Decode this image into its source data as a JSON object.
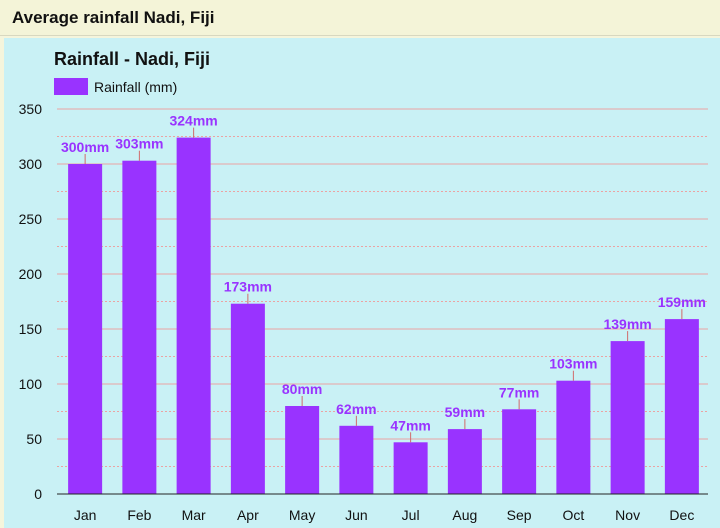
{
  "header": {
    "title": "Average rainfall Nadi, Fiji"
  },
  "colors": {
    "bar": "#9933ff",
    "panel": "#c9f1f5",
    "gridline": "#eba3a3",
    "label": "#9933ff"
  },
  "chart_data": {
    "type": "bar",
    "title": "Rainfall - Nadi, Fiji",
    "xlabel": "",
    "ylabel": "",
    "ylim": [
      0,
      350
    ],
    "yticks": [
      0,
      50,
      100,
      150,
      200,
      250,
      300,
      350
    ],
    "grid": true,
    "legend": "top-left",
    "categories": [
      "Jan",
      "Feb",
      "Mar",
      "Apr",
      "May",
      "Jun",
      "Jul",
      "Aug",
      "Sep",
      "Oct",
      "Nov",
      "Dec"
    ],
    "series": [
      {
        "name": "Rainfall (mm)",
        "values": [
          300,
          303,
          324,
          173,
          80,
          62,
          47,
          59,
          77,
          103,
          139,
          159
        ],
        "labels": [
          "300mm",
          "303mm",
          "324mm",
          "173mm",
          "80mm",
          "62mm",
          "47mm",
          "59mm",
          "77mm",
          "103mm",
          "139mm",
          "159mm"
        ]
      }
    ]
  }
}
